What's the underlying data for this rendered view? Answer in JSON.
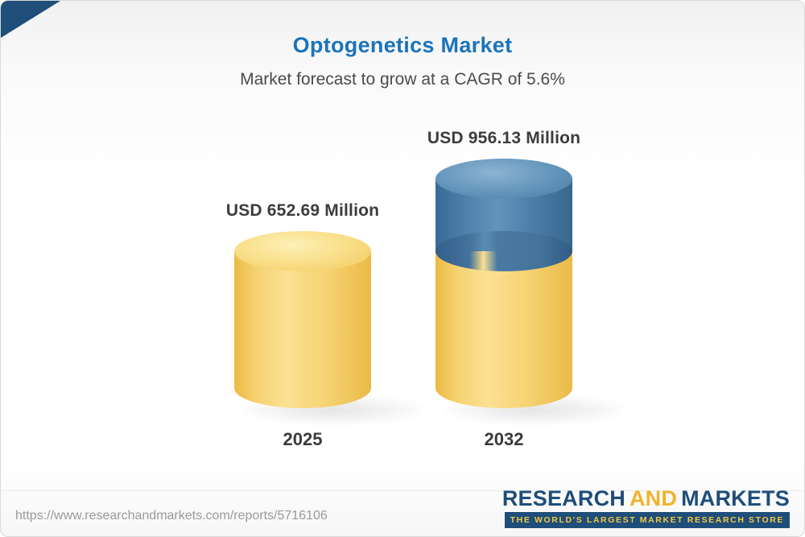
{
  "header": {
    "title": "Optogenetics Market",
    "subtitle": "Market forecast to grow at a CAGR of 5.6%"
  },
  "chart_data": {
    "type": "bar",
    "variant": "3d-cylinder",
    "title": "Optogenetics Market",
    "subtitle": "Market forecast to grow at a CAGR of 5.6%",
    "categories": [
      "2025",
      "2032"
    ],
    "values": [
      652.69,
      956.13
    ],
    "value_unit": "USD Million",
    "value_labels": [
      "USD 652.69 Million",
      "USD 956.13 Million"
    ],
    "cagr": "5.6%",
    "xlabel": "",
    "ylabel": "",
    "grid": false,
    "legend": false,
    "colors": {
      "bar_2025": "#f6d170",
      "bar_2032_base": "#f6d170",
      "bar_2032_top": "#4c7ea9",
      "title": "#1b74ba",
      "label_text": "#3c3c3c"
    }
  },
  "footer": {
    "url": "https://www.researchandmarkets.com/reports/5716106",
    "logo": {
      "research": "RESEARCH",
      "and": "AND",
      "markets": "MARKETS",
      "tagline": "THE WORLD'S LARGEST MARKET RESEARCH STORE"
    }
  }
}
